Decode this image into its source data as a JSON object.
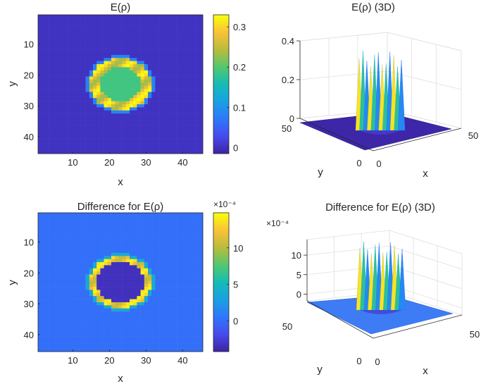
{
  "colors": {
    "low": "#3e26a8",
    "high": "#f9fb0e",
    "axis": "#262626",
    "grid": "#dfdfdf"
  },
  "chart_data": [
    {
      "id": "heat-top",
      "type": "heatmap",
      "title": "E(ρ)",
      "xlabel": "x",
      "ylabel": "y",
      "xlim": [
        0.5,
        45.5
      ],
      "ylim": [
        0.5,
        45.5
      ],
      "y_direction": "reversed",
      "xticks": [
        10,
        20,
        30,
        40
      ],
      "yticks": [
        10,
        20,
        30,
        40
      ],
      "grid_size": 45,
      "ring": {
        "center": [
          23,
          23
        ],
        "inner_radius": 5.5,
        "outer_radius": 8.5
      },
      "values": {
        "outside": 0.0,
        "inner": 0.19,
        "ring_peak": 0.33
      },
      "colorbar": {
        "limits": [
          -0.015,
          0.33
        ],
        "ticks": [
          0,
          0.1,
          0.2,
          0.3
        ],
        "tick_labels": [
          "0",
          "0.1",
          "0.2",
          "0.3"
        ],
        "exponent_label": ""
      },
      "grid": false
    },
    {
      "id": "surf-top",
      "type": "surface",
      "title": "E(ρ) (3D)",
      "xlabel": "x",
      "ylabel": "y",
      "xlim": [
        0,
        50
      ],
      "ylim": [
        0,
        50
      ],
      "zlim": [
        0,
        0.4
      ],
      "xticks": [
        0,
        50
      ],
      "yticks": [
        0,
        50
      ],
      "zticks": [
        0,
        0.2,
        0.4
      ],
      "zticklabels": [
        "0",
        "0.2",
        "0.4"
      ],
      "exponent_label": "",
      "grid": true
    },
    {
      "id": "heat-bottom",
      "type": "heatmap",
      "title": "Difference for E(ρ)",
      "xlabel": "x",
      "ylabel": "y",
      "xlim": [
        0.5,
        45.5
      ],
      "ylim": [
        0.5,
        45.5
      ],
      "y_direction": "reversed",
      "xticks": [
        10,
        20,
        30,
        40
      ],
      "yticks": [
        10,
        20,
        30,
        40
      ],
      "grid_size": 45,
      "ring": {
        "center": [
          23,
          23
        ],
        "inner_radius": 6.5,
        "outer_radius": 8.5
      },
      "values": {
        "outside": 0.0,
        "inner": -0.00035,
        "ring_peak": 0.00145
      },
      "colorbar": {
        "limits": [
          -0.00042,
          0.00148
        ],
        "ticks": [
          0,
          0.0005,
          0.001
        ],
        "tick_labels": [
          "0",
          "5",
          "10"
        ],
        "exponent_label": "×10⁻⁴"
      },
      "grid": false
    },
    {
      "id": "surf-bottom",
      "type": "surface",
      "title": "Difference for E(ρ) (3D)",
      "xlabel": "x",
      "ylabel": "y",
      "xlim": [
        0,
        50
      ],
      "ylim": [
        0,
        50
      ],
      "zlim": [
        -0.0003,
        0.0014
      ],
      "xticks": [
        0,
        50
      ],
      "yticks": [
        0,
        50
      ],
      "zticks": [
        0,
        0.0005,
        0.001
      ],
      "zticklabels": [
        "0",
        "5",
        "10"
      ],
      "exponent_label": "×10⁻⁴",
      "grid": true
    }
  ]
}
